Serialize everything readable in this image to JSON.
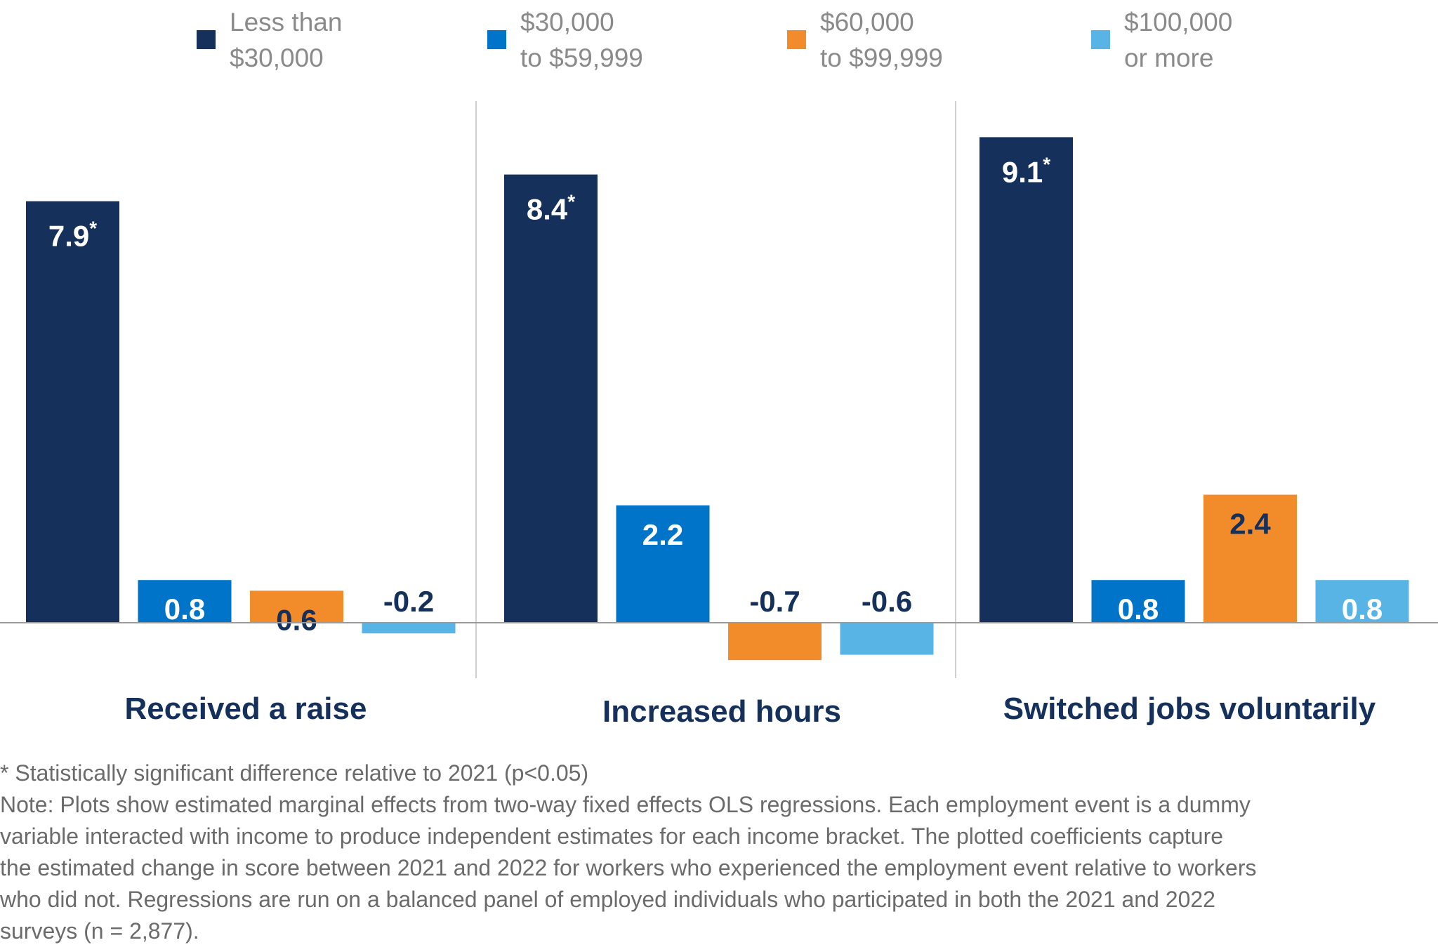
{
  "chart_data": {
    "type": "bar",
    "categories": [
      "Received a raise",
      "Increased hours",
      "Switched jobs voluntarily"
    ],
    "series": [
      {
        "name": "Less than $30,000",
        "name_lines": [
          "Less than",
          "$30,000"
        ],
        "color": "#15305A",
        "values": [
          7.9,
          8.4,
          9.1
        ],
        "labels": [
          "7.9*",
          "8.4*",
          "9.1*"
        ]
      },
      {
        "name": "$30,000 to $59,999",
        "name_lines": [
          "$30,000",
          "to $59,999"
        ],
        "color": "#0074C8",
        "values": [
          0.8,
          2.2,
          0.8
        ],
        "labels": [
          "0.8",
          "2.2",
          "0.8"
        ]
      },
      {
        "name": "$60,000 to $99,999",
        "name_lines": [
          "$60,000",
          "to $99,999"
        ],
        "color": "#F28C2B",
        "values": [
          0.6,
          -0.7,
          2.4
        ],
        "labels": [
          "0.6",
          "-0.7",
          "2.4"
        ]
      },
      {
        "name": "$100,000 or more",
        "name_lines": [
          "$100,000",
          "or more"
        ],
        "color": "#58B4E4",
        "values": [
          -0.2,
          -0.6,
          0.8
        ],
        "labels": [
          "-0.2",
          "-0.6",
          "0.8"
        ]
      }
    ],
    "legend_position": "top",
    "grid": false,
    "yaxis_shown": false
  },
  "footnotes": [
    "* Statistically significant difference relative to 2021 (p<0.05)",
    "Note: Plots show estimated marginal effects from two-way fixed effects OLS regressions. Each employment event is a dummy",
    "variable interacted with income to produce independent estimates for each income bracket. The plotted coefficients capture",
    "the estimated change in score between 2021 and 2022 for workers who experienced the employment event relative to workers",
    "who did not. Regressions are run on a balanced panel of employed individuals who participated in both the 2021 and 2022",
    "surveys (n = 2,877)."
  ]
}
